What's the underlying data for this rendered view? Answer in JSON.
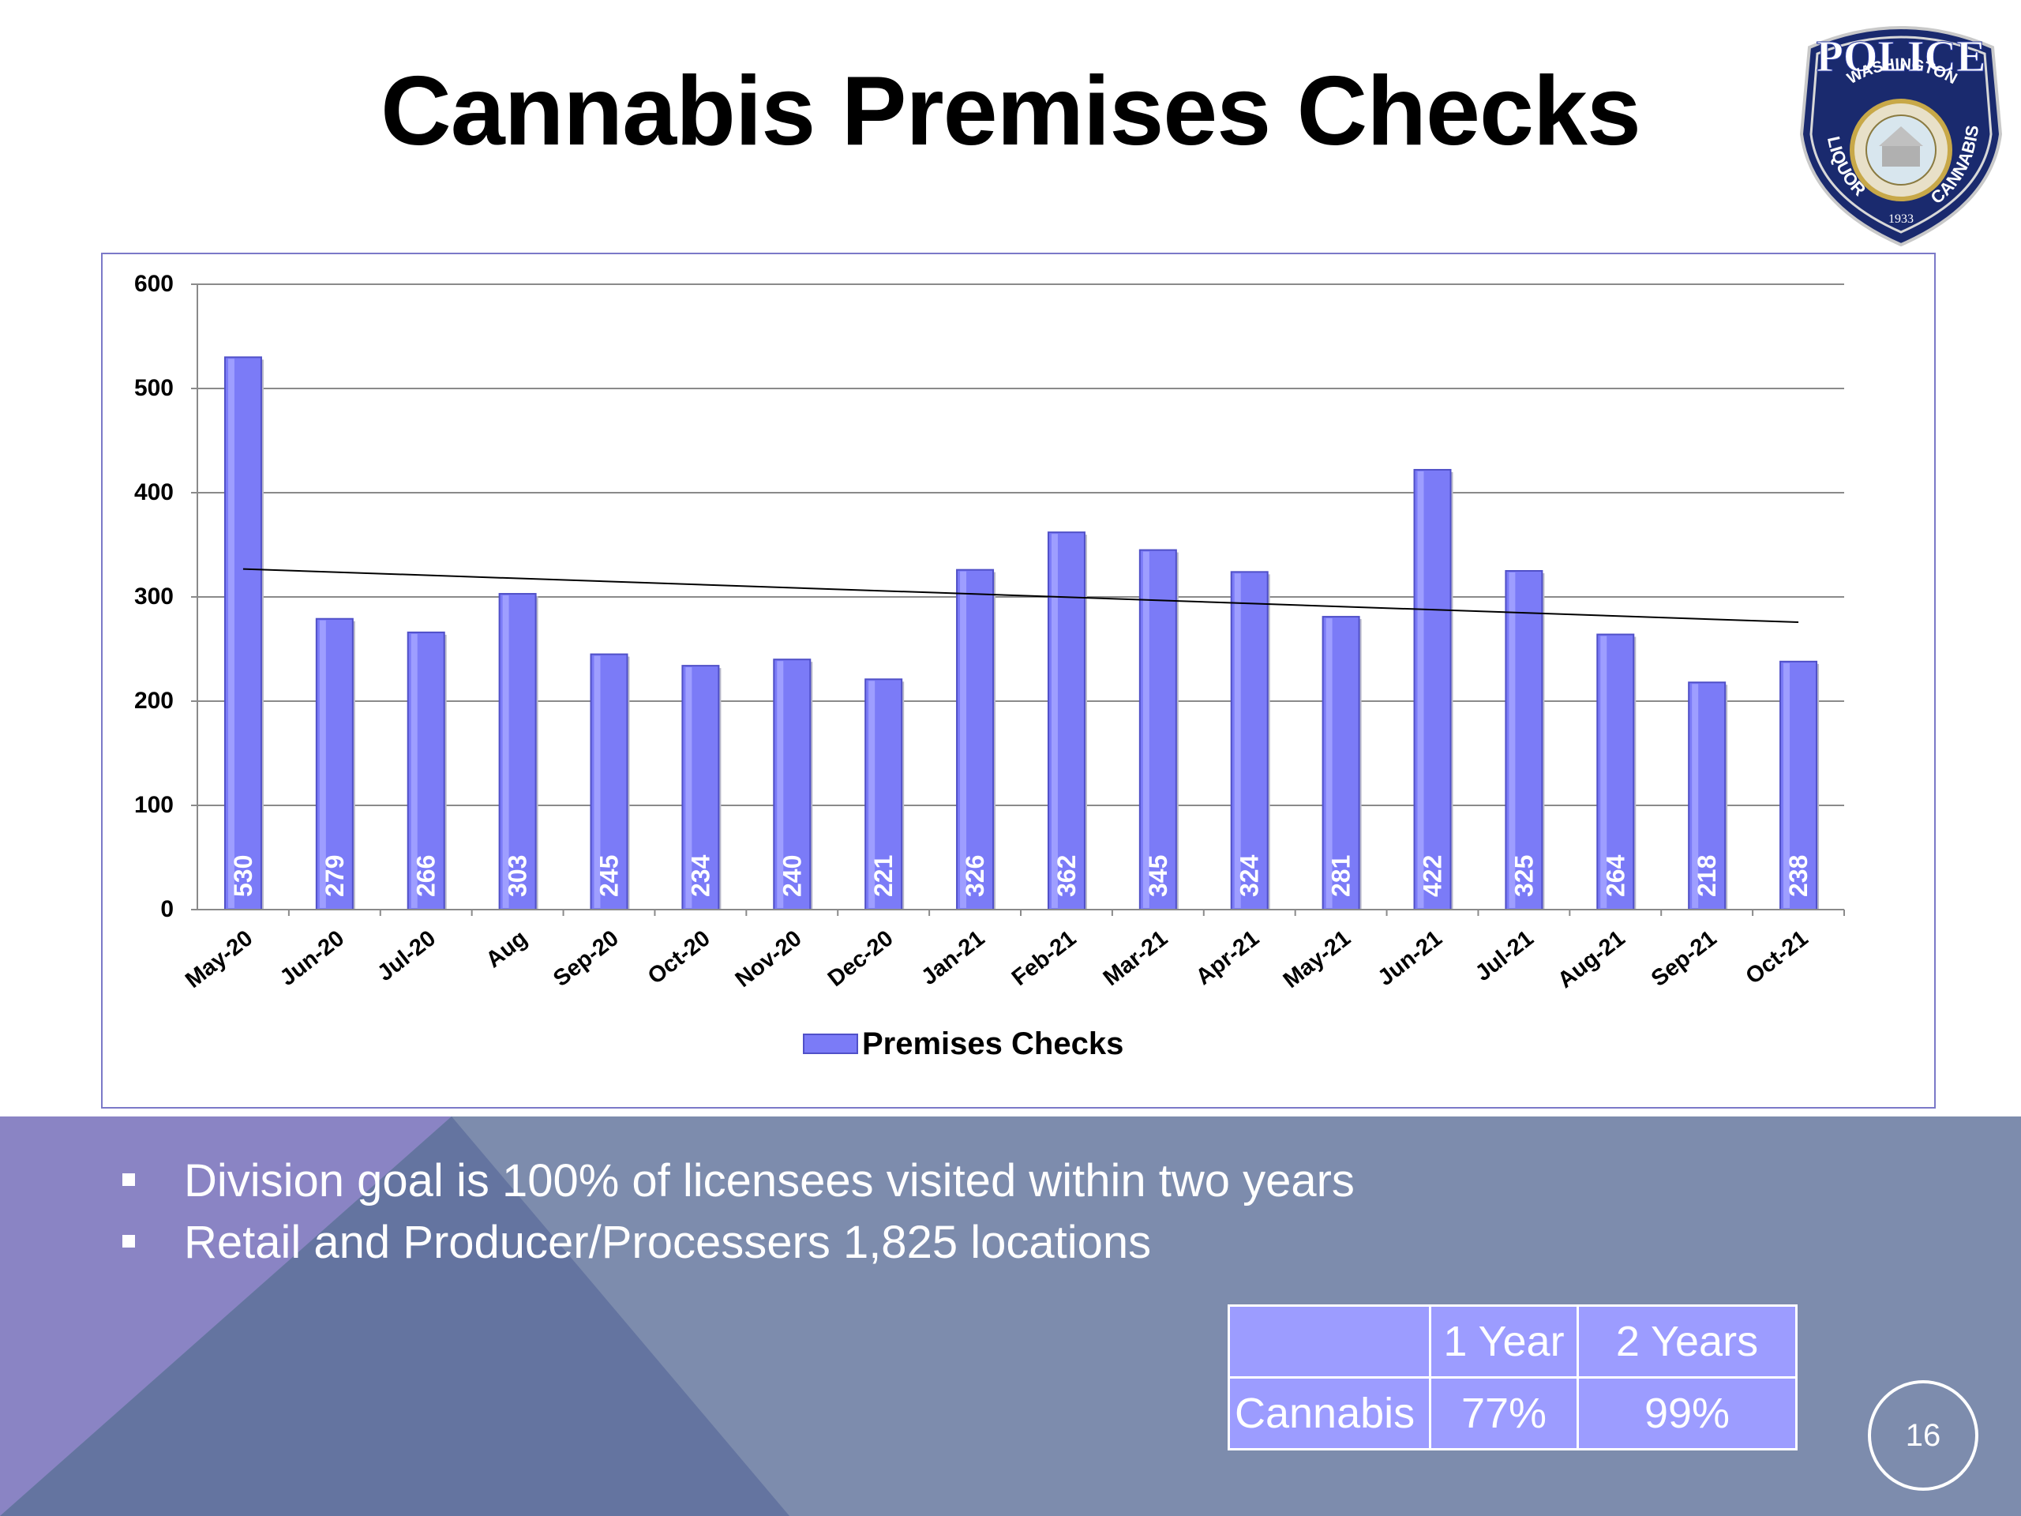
{
  "slide": {
    "title": "Cannabis Premises Checks",
    "page_number": "16"
  },
  "badge": {
    "top_text": "POLICE",
    "arc_text": "WASHINGTON",
    "left_text": "LIQUOR",
    "right_text": "CANNABIS",
    "year": "1933"
  },
  "chart_data": {
    "type": "bar",
    "categories": [
      "May-20",
      "Jun-20",
      "Jul-20",
      "Aug",
      "Sep-20",
      "Oct-20",
      "Nov-20",
      "Dec-20",
      "Jan-21",
      "Feb-21",
      "Mar-21",
      "Apr-21",
      "May-21",
      "Jun-21",
      "Jul-21",
      "Aug-21",
      "Sep-21",
      "Oct-21"
    ],
    "series": [
      {
        "name": "Premises Checks",
        "values": [
          530,
          279,
          266,
          303,
          245,
          234,
          240,
          221,
          326,
          362,
          345,
          324,
          281,
          422,
          325,
          264,
          218,
          238
        ]
      }
    ],
    "ylim": [
      0,
      600
    ],
    "yticks": [
      0,
      100,
      200,
      300,
      400,
      500,
      600
    ],
    "trendline": {
      "type": "linear"
    },
    "grid": true,
    "legend": "bottom-center",
    "bar_color": "#7b7bf7",
    "data_label_color": "#ffffff"
  },
  "bullets": [
    "Division goal is 100% of licensees visited within two years",
    "Retail and Producer/Processers 1,825 locations"
  ],
  "summary_table": {
    "headers": [
      "",
      "1 Year",
      "2 Years"
    ],
    "rows": [
      [
        "Cannabis",
        "77%",
        "99%"
      ]
    ]
  },
  "colors": {
    "band_main": "#7d8cad",
    "band_left": "#8a84c4",
    "band_dark": "#6474a0",
    "table_bg": "#9c9cff"
  }
}
